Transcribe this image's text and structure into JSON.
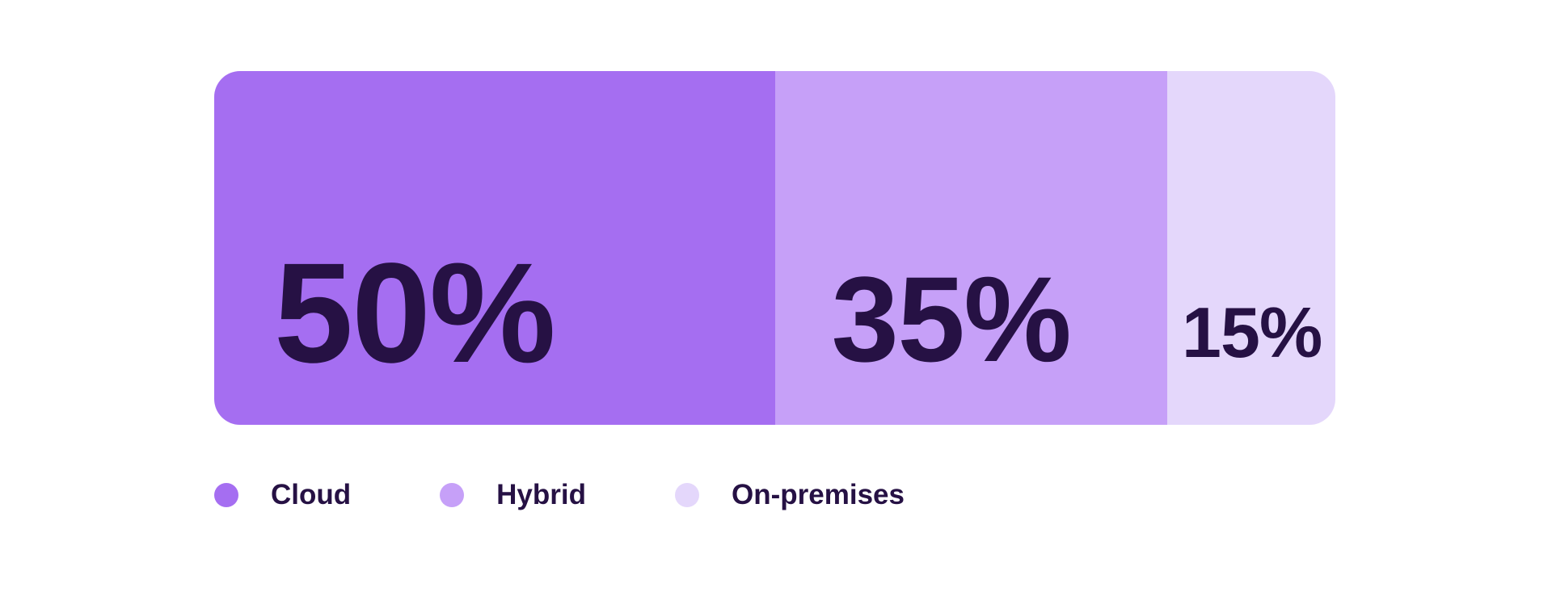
{
  "chart_data": {
    "type": "bar",
    "orientation": "horizontal",
    "stacked": true,
    "title": "",
    "categories": [
      "Cloud",
      "Hybrid",
      "On-premises"
    ],
    "values": [
      50,
      35,
      15
    ],
    "unit": "%",
    "xlim": [
      0,
      100
    ],
    "grid": false,
    "segments": [
      {
        "name": "Cloud",
        "value": 50,
        "label": "50%",
        "color": "#a56ef1"
      },
      {
        "name": "Hybrid",
        "value": 35,
        "label": "35%",
        "color": "#c6a0f8"
      },
      {
        "name": "On-premises",
        "value": 15,
        "label": "15%",
        "color": "#e4d7fb"
      }
    ],
    "legend": {
      "position": "bottom-left",
      "items": [
        "Cloud",
        "Hybrid",
        "On-premises"
      ]
    },
    "value_label_color": "#261144",
    "legend_label_color": "#261144",
    "background_color": "#ffffff"
  }
}
